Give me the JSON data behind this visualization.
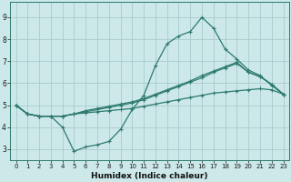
{
  "xlabel": "Humidex (Indice chaleur)",
  "bg_color": "#cce8e8",
  "grid_color": "#aacccc",
  "line_color": "#2d7a6e",
  "xlim": [
    -0.5,
    23.5
  ],
  "ylim": [
    2.5,
    9.7
  ],
  "xticks": [
    0,
    1,
    2,
    3,
    4,
    5,
    6,
    7,
    8,
    9,
    10,
    11,
    12,
    13,
    14,
    15,
    16,
    17,
    18,
    19,
    20,
    21,
    22,
    23
  ],
  "yticks": [
    3,
    4,
    5,
    6,
    7,
    8,
    9
  ],
  "series": [
    [
      5.0,
      4.6,
      4.5,
      4.5,
      4.0,
      2.9,
      3.1,
      3.2,
      3.35,
      3.9,
      4.8,
      5.45,
      6.8,
      7.8,
      8.15,
      8.35,
      9.0,
      8.5,
      7.55,
      7.1,
      6.6,
      6.35,
      5.9,
      5.5
    ],
    [
      5.0,
      4.6,
      4.5,
      4.5,
      4.5,
      4.6,
      4.75,
      4.85,
      4.95,
      5.05,
      5.15,
      5.3,
      5.5,
      5.7,
      5.9,
      6.1,
      6.35,
      6.55,
      6.75,
      6.95,
      6.5,
      6.3,
      5.95,
      5.5
    ],
    [
      5.0,
      4.6,
      4.5,
      4.5,
      4.5,
      4.6,
      4.65,
      4.7,
      4.75,
      4.8,
      4.85,
      4.95,
      5.05,
      5.15,
      5.25,
      5.35,
      5.45,
      5.55,
      5.6,
      5.65,
      5.7,
      5.75,
      5.7,
      5.5
    ],
    [
      5.0,
      4.6,
      4.5,
      4.5,
      4.5,
      4.6,
      4.7,
      4.8,
      4.9,
      5.0,
      5.1,
      5.25,
      5.45,
      5.65,
      5.85,
      6.05,
      6.25,
      6.5,
      6.7,
      6.9,
      6.5,
      6.3,
      5.95,
      5.5
    ]
  ]
}
